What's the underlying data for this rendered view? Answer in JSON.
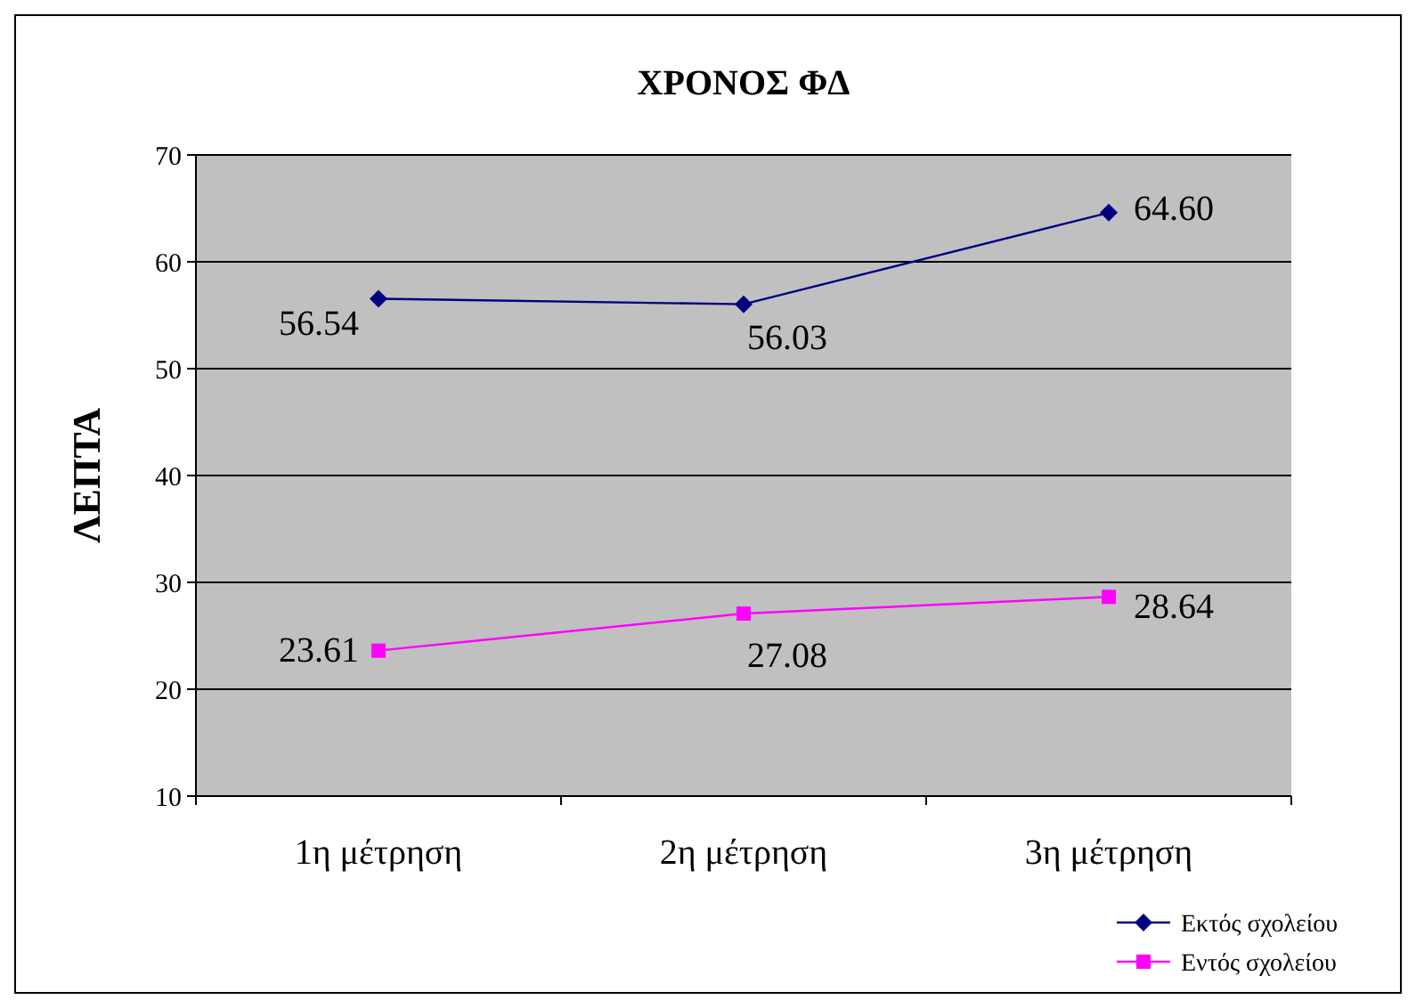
{
  "chart_data": {
    "type": "line",
    "title": "ΧΡΟΝΟΣ ΦΔ",
    "ylabel": "ΛΕΠΤΑ",
    "categories": [
      "1η μέτρηση",
      "2η μέτρηση",
      "3η μέτρηση"
    ],
    "series": [
      {
        "name": "Εκτός σχολείου",
        "color": "#000080",
        "marker": "diamond",
        "values": [
          56.54,
          56.03,
          64.6
        ],
        "value_labels": [
          "56.54",
          "56.03",
          "64.60"
        ]
      },
      {
        "name": "Εντός σχολείου",
        "color": "#ff00ff",
        "marker": "square",
        "values": [
          23.61,
          27.08,
          28.64
        ],
        "value_labels": [
          "23.61",
          "27.08",
          "28.64"
        ]
      }
    ],
    "ylim": [
      10,
      70
    ],
    "yticks": [
      10,
      20,
      30,
      40,
      50,
      60,
      70
    ],
    "grid": "y",
    "legend": "bottom right",
    "data_labels": true,
    "line_style": "solid"
  }
}
